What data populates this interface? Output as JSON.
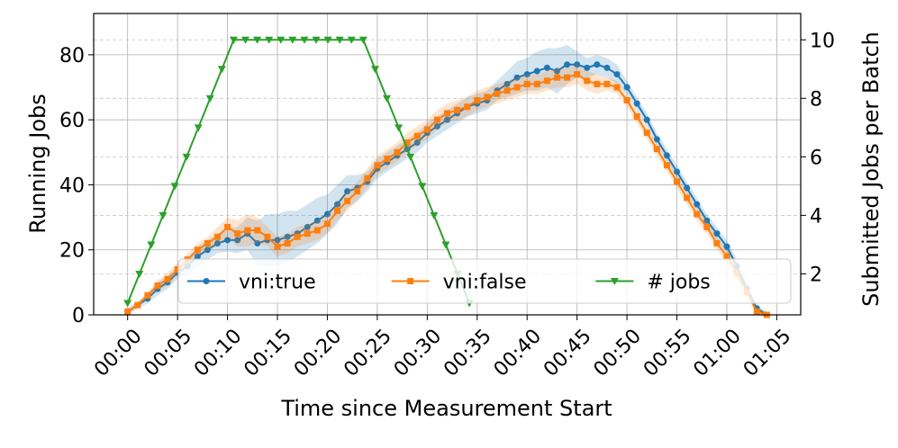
{
  "chart_data": {
    "type": "line",
    "x_label": "Time since Measurement Start",
    "y_label": "Running Jobs",
    "y2_label": "Submitted Jobs per Batch",
    "xlim": [
      -3.4,
      67.4
    ],
    "xticks": [
      {
        "value": 0,
        "label": "00:00"
      },
      {
        "value": 5,
        "label": "00:05"
      },
      {
        "value": 10,
        "label": "00:10"
      },
      {
        "value": 15,
        "label": "00:15"
      },
      {
        "value": 20,
        "label": "00:20"
      },
      {
        "value": 25,
        "label": "00:25"
      },
      {
        "value": 30,
        "label": "00:30"
      },
      {
        "value": 35,
        "label": "00:35"
      },
      {
        "value": 40,
        "label": "00:40"
      },
      {
        "value": 45,
        "label": "00:45"
      },
      {
        "value": 50,
        "label": "00:50"
      },
      {
        "value": 55,
        "label": "00:55"
      },
      {
        "value": 60,
        "label": "01:00"
      },
      {
        "value": 65,
        "label": "01:05"
      }
    ],
    "ylim": [
      0,
      92.7
    ],
    "yticks": [
      0,
      20,
      40,
      60,
      80
    ],
    "y2lim": [
      0.6,
      10.9
    ],
    "y2ticks": [
      2,
      4,
      6,
      8,
      10
    ],
    "grid": true,
    "legend": "lower right",
    "x": [
      0,
      1,
      2,
      3,
      4,
      5,
      6,
      7,
      8,
      9,
      10,
      11,
      12,
      13,
      14,
      15,
      16,
      17,
      18,
      19,
      20,
      21,
      22,
      23,
      24,
      25,
      26,
      27,
      28,
      29,
      30,
      31,
      32,
      33,
      34,
      35,
      36,
      37,
      38,
      39,
      40,
      41,
      42,
      43,
      44,
      45,
      46,
      47,
      48,
      49,
      50,
      51,
      52,
      53,
      54,
      55,
      56,
      57,
      58,
      59,
      60,
      61,
      62,
      63,
      64
    ],
    "series": [
      {
        "name": "vni:true",
        "color": "#1f77b4",
        "marker": "circle",
        "values": [
          1,
          3,
          5,
          8,
          10,
          13,
          15,
          18,
          20,
          22,
          23,
          23,
          25,
          22,
          23,
          23,
          24,
          25,
          27,
          29,
          31,
          34,
          38,
          39,
          41,
          45,
          47,
          49,
          51,
          53,
          56,
          58,
          60,
          62,
          64,
          65,
          66,
          69,
          71,
          73,
          74,
          75,
          76,
          75,
          77,
          77,
          76,
          77,
          76,
          74,
          70,
          65,
          60,
          54,
          49,
          44,
          39,
          34,
          29,
          25,
          21,
          15,
          8,
          2,
          0
        ],
        "errors": [
          1,
          1,
          1.5,
          2,
          2,
          2,
          2.5,
          3,
          3,
          3,
          3.5,
          4,
          5,
          7,
          8,
          8,
          8,
          7,
          7,
          7,
          6,
          6,
          5,
          4,
          3,
          3,
          3,
          3,
          3,
          3,
          3,
          3,
          3,
          3,
          3,
          3,
          3,
          3,
          4,
          5,
          5,
          6,
          6,
          7,
          6,
          4,
          3,
          3,
          3,
          3,
          2,
          2,
          2,
          2,
          2,
          2,
          2,
          2,
          2,
          2,
          2,
          2,
          2,
          1,
          1
        ]
      },
      {
        "name": "vni:false",
        "color": "#ff7f0e",
        "marker": "square",
        "values": [
          1,
          3,
          6,
          9,
          11,
          14,
          17,
          20,
          22,
          24,
          27,
          25,
          26,
          26,
          24,
          21,
          22,
          24,
          25,
          26,
          28,
          32,
          35,
          38,
          42,
          46,
          48,
          50,
          53,
          55,
          57,
          60,
          62,
          63,
          64,
          66,
          67,
          68,
          69,
          70,
          71,
          71,
          72,
          73,
          73,
          74,
          72,
          71,
          71,
          70,
          66,
          61,
          56,
          51,
          46,
          41,
          36,
          31,
          27,
          22,
          18,
          13,
          7,
          1,
          0
        ],
        "errors": [
          1,
          1,
          1,
          1.5,
          2,
          2,
          2,
          2,
          2,
          3,
          3,
          4,
          5,
          4,
          3,
          3,
          3,
          3,
          3,
          3,
          3,
          3,
          3,
          3,
          3,
          3,
          3,
          3,
          3,
          3,
          3,
          3,
          3,
          3,
          3,
          3,
          3,
          3,
          3,
          3,
          3,
          3,
          3,
          3,
          3,
          3,
          3,
          3,
          2,
          2,
          2,
          2,
          2,
          2,
          2,
          2,
          2,
          2,
          2,
          2,
          2,
          2,
          1,
          1,
          1
        ]
      },
      {
        "name": "# jobs",
        "color": "#2ca02c",
        "marker": "triangle-down",
        "axis": "y2",
        "x": [
          0,
          1.18,
          2.36,
          3.54,
          4.72,
          5.9,
          7.08,
          8.26,
          9.44,
          10.62,
          11.8,
          12.98,
          14.16,
          15.34,
          16.52,
          17.7,
          18.88,
          20.06,
          21.24,
          22.42,
          23.6,
          24.78,
          25.96,
          27.14,
          28.32,
          29.5,
          30.68,
          31.86,
          33.04,
          34.22
        ],
        "values": [
          1,
          2,
          3,
          4,
          5,
          6,
          7,
          8,
          9,
          10,
          10,
          10,
          10,
          10,
          10,
          10,
          10,
          10,
          10,
          10,
          10,
          9,
          8,
          7,
          6,
          5,
          4,
          3,
          2,
          1
        ]
      }
    ]
  }
}
